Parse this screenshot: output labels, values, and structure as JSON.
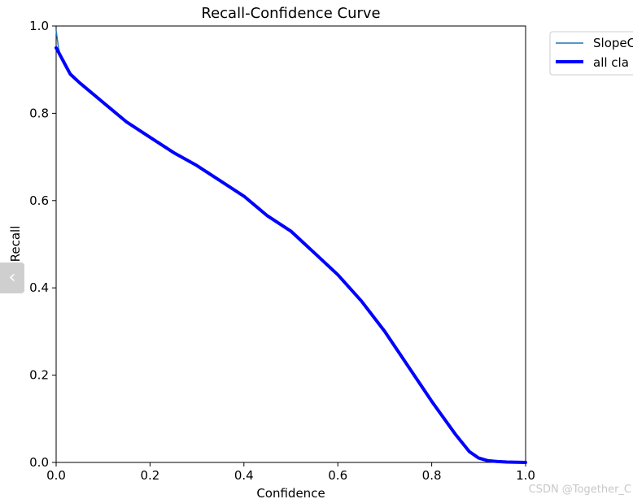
{
  "chart_data": {
    "type": "line",
    "title": "Recall-Confidence Curve",
    "xlabel": "Confidence",
    "ylabel": "Recall",
    "xlim": [
      0,
      1
    ],
    "ylim": [
      0,
      1
    ],
    "xticks": [
      "0.0",
      "0.2",
      "0.4",
      "0.6",
      "0.8",
      "1.0"
    ],
    "yticks": [
      "0.0",
      "0.2",
      "0.4",
      "0.6",
      "0.8",
      "1.0"
    ],
    "grid": false,
    "legend_position": "outside-top-right",
    "series": [
      {
        "name": "SlopeC",
        "color": "#1f77b4",
        "x": [
          0.0,
          0.005,
          0.01,
          0.015,
          0.02,
          0.025,
          0.03,
          0.05,
          0.1,
          0.15,
          0.2,
          0.25,
          0.3,
          0.35,
          0.4,
          0.45,
          0.5,
          0.55,
          0.6,
          0.65,
          0.7,
          0.75,
          0.8,
          0.85,
          0.88,
          0.9,
          0.92,
          0.94,
          0.96,
          0.98,
          1.0
        ],
        "y": [
          0.99,
          0.95,
          0.93,
          0.92,
          0.91,
          0.9,
          0.89,
          0.87,
          0.825,
          0.78,
          0.745,
          0.71,
          0.68,
          0.645,
          0.61,
          0.565,
          0.53,
          0.48,
          0.43,
          0.37,
          0.3,
          0.22,
          0.14,
          0.065,
          0.025,
          0.01,
          0.004,
          0.002,
          0.001,
          0.0005,
          0.0
        ]
      },
      {
        "name": "all classes",
        "color": "#0000ff",
        "x": [
          0.0,
          0.005,
          0.01,
          0.015,
          0.02,
          0.025,
          0.03,
          0.05,
          0.1,
          0.15,
          0.2,
          0.25,
          0.3,
          0.35,
          0.4,
          0.45,
          0.5,
          0.55,
          0.6,
          0.65,
          0.7,
          0.75,
          0.8,
          0.85,
          0.88,
          0.9,
          0.92,
          0.94,
          0.96,
          0.98,
          1.0
        ],
        "y": [
          0.95,
          0.94,
          0.93,
          0.92,
          0.91,
          0.9,
          0.89,
          0.87,
          0.825,
          0.78,
          0.745,
          0.71,
          0.68,
          0.645,
          0.61,
          0.565,
          0.53,
          0.48,
          0.43,
          0.37,
          0.3,
          0.22,
          0.14,
          0.065,
          0.025,
          0.01,
          0.004,
          0.002,
          0.001,
          0.0005,
          0.0
        ]
      }
    ]
  },
  "legend": {
    "items": [
      {
        "label": "SlopeC",
        "color": "#1f77b4"
      },
      {
        "label": "all cla",
        "color": "#0000ff"
      }
    ]
  },
  "watermark": "CSDN @Together_C",
  "nav": {
    "prev_glyph": "‹"
  }
}
